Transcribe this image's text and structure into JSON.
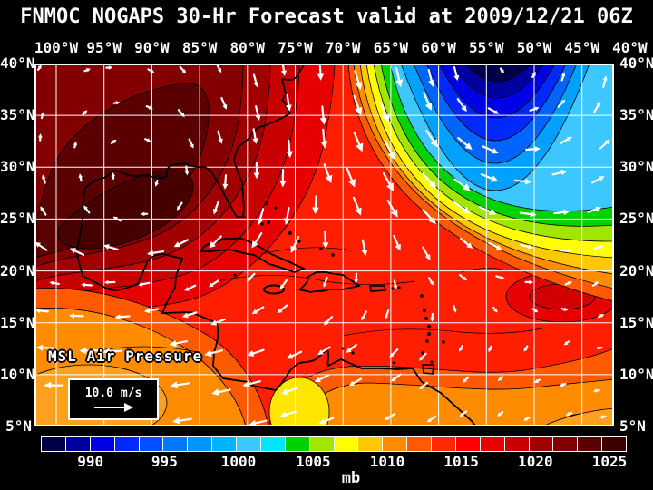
{
  "title": "FNMOC NOGAPS 30-Hr Forecast valid at 2009/12/21 06Z",
  "map": {
    "longitude_labels": [
      "100°W",
      "95°W",
      "90°W",
      "85°W",
      "80°W",
      "75°W",
      "70°W",
      "65°W",
      "60°W",
      "55°W",
      "50°W",
      "45°W",
      "40°W"
    ],
    "latitude_labels": [
      "40°N",
      "35°N",
      "30°N",
      "25°N",
      "20°N",
      "15°N",
      "10°N",
      "5°N"
    ],
    "field_label": "MSL Air Pressure",
    "wind_scale_label": "10.0 m/s",
    "icons": {
      "wind_scale_arrow": "right-arrow"
    }
  },
  "colorbar": {
    "unit": "mb",
    "ticks": [
      "990",
      "995",
      "1000",
      "1005",
      "1010",
      "1015",
      "1020",
      "1025"
    ],
    "tick_positions_pct": [
      8.2,
      20.9,
      33.6,
      46.4,
      59.1,
      71.8,
      84.5,
      97.2
    ],
    "cell_colors": [
      "#000048",
      "#0000A0",
      "#0000E6",
      "#0028FF",
      "#0050FF",
      "#0078FF",
      "#0096FF",
      "#00B4FF",
      "#3CC8FF",
      "#00E6FF",
      "#00D200",
      "#A0E600",
      "#FFFF00",
      "#FFC800",
      "#FF8C00",
      "#FF5A00",
      "#FF2800",
      "#FF0000",
      "#E60000",
      "#C80000",
      "#A00000",
      "#820000",
      "#5A0000",
      "#3C0000"
    ]
  },
  "colors": {
    "background": "#000000",
    "text": "#FFFFFF",
    "grid_lines": "#FFFFFF",
    "coastlines": "#000000",
    "wind_arrows": "#FFFFFF",
    "base_fill": "#FF1E00"
  }
}
